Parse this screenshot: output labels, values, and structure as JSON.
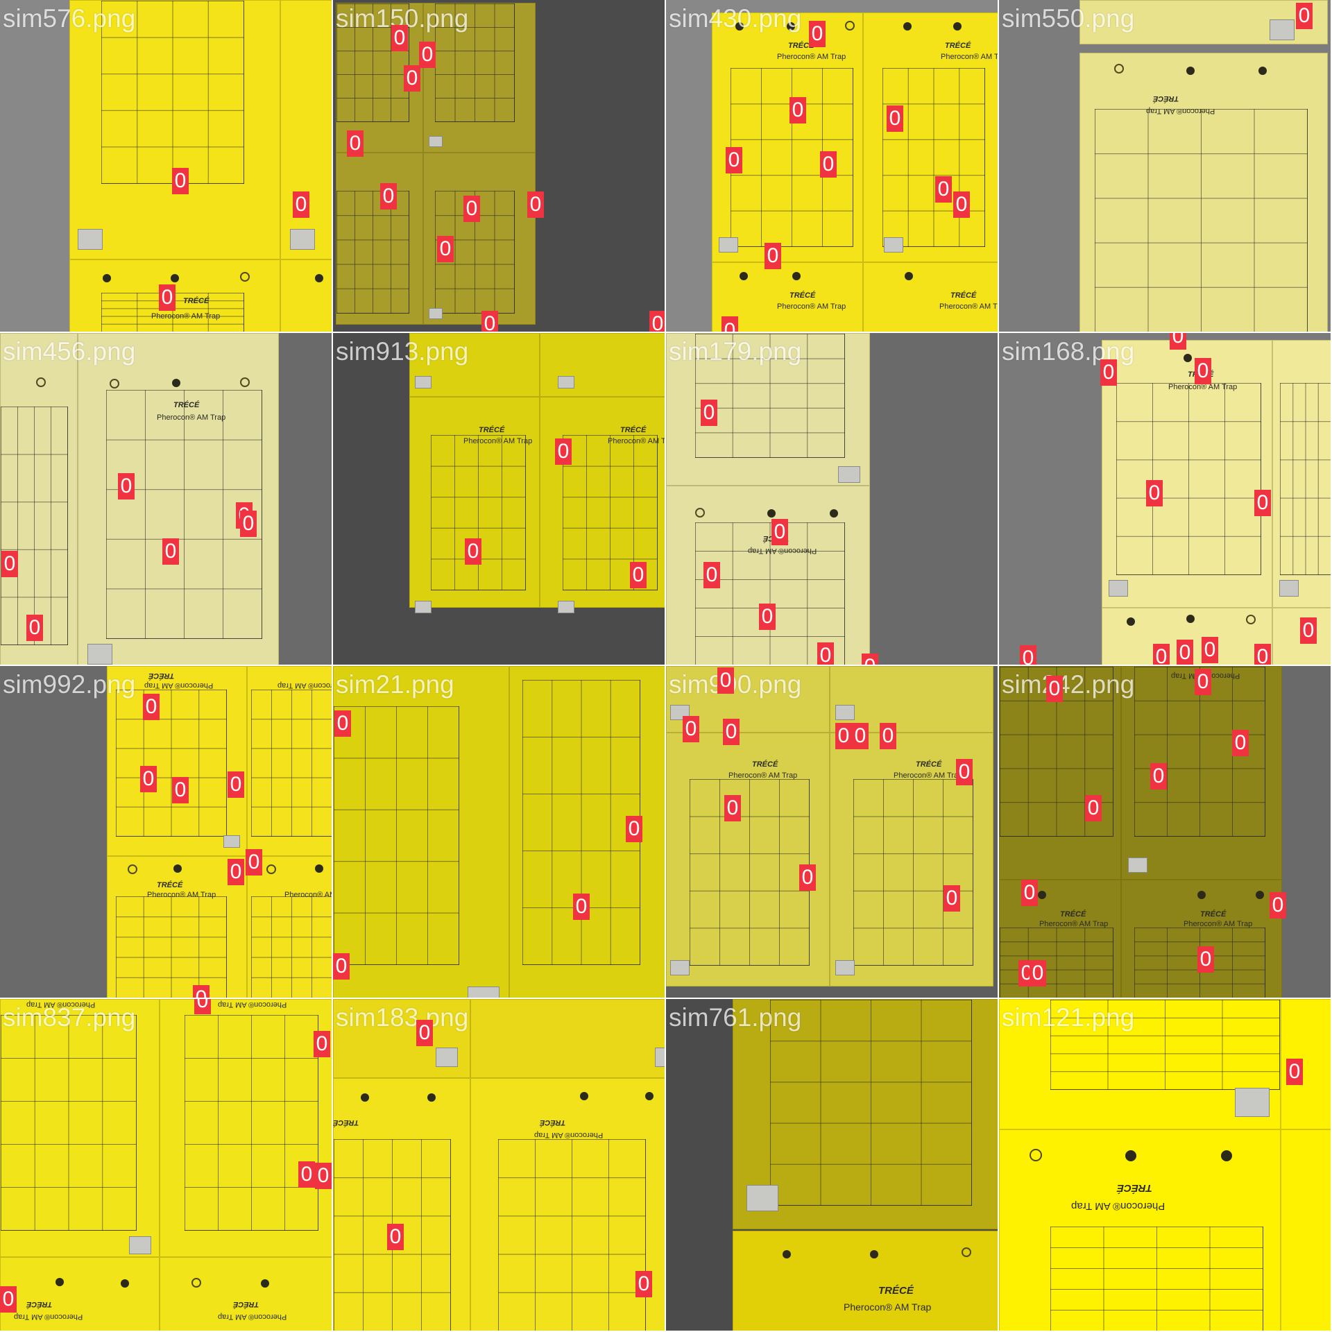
{
  "tiles": [
    {
      "name": "sim576.png",
      "detections": [
        "0",
        "0",
        "0"
      ]
    },
    {
      "name": "sim150.png",
      "detections": [
        "0",
        "0",
        "0",
        "0",
        "0",
        "0",
        "0",
        "0",
        "0",
        "0"
      ]
    },
    {
      "name": "sim430.png",
      "detections": [
        "0",
        "0",
        "0",
        "0",
        "0",
        "0",
        "0",
        "0",
        "0",
        "0"
      ]
    },
    {
      "name": "sim550.png",
      "detections": [
        "0"
      ]
    },
    {
      "name": "sim456.png",
      "detections": [
        "0",
        "0",
        "0",
        "0",
        "0",
        "0"
      ]
    },
    {
      "name": "sim913.png",
      "detections": [
        "0",
        "0",
        "0"
      ]
    },
    {
      "name": "sim179.png",
      "detections": [
        "0",
        "0",
        "0",
        "0",
        "0",
        "0"
      ]
    },
    {
      "name": "sim168.png",
      "detections": [
        "0",
        "0",
        "0",
        "0",
        "0",
        "0",
        "0",
        "0",
        "0",
        "0",
        "0"
      ]
    },
    {
      "name": "sim992.png",
      "detections": [
        "0",
        "0",
        "0",
        "0",
        "0",
        "0",
        "0"
      ]
    },
    {
      "name": "sim21.png",
      "detections": [
        "0",
        "0",
        "0",
        "0"
      ]
    },
    {
      "name": "sim990.png",
      "detections": [
        "0",
        "0",
        "0",
        "0",
        "0",
        "0",
        "0",
        "0",
        "0",
        "0"
      ]
    },
    {
      "name": "sim242.png",
      "detections": [
        "0",
        "0",
        "0",
        "0",
        "0",
        "0",
        "0",
        "0",
        "0",
        "0"
      ]
    },
    {
      "name": "sim837.png",
      "detections": [
        "0",
        "0",
        "0",
        "0",
        "0"
      ]
    },
    {
      "name": "sim183.png",
      "detections": [
        "0",
        "0",
        "0"
      ]
    },
    {
      "name": "sim761.png",
      "detections": []
    },
    {
      "name": "sim121.png",
      "detections": [
        "0"
      ]
    }
  ],
  "trap_text": {
    "brand": "TRÉCÉ",
    "product": "Pherocon® AM Trap"
  },
  "colors": {
    "detection_box": "#ef3340",
    "label_text": "#ffffff"
  }
}
